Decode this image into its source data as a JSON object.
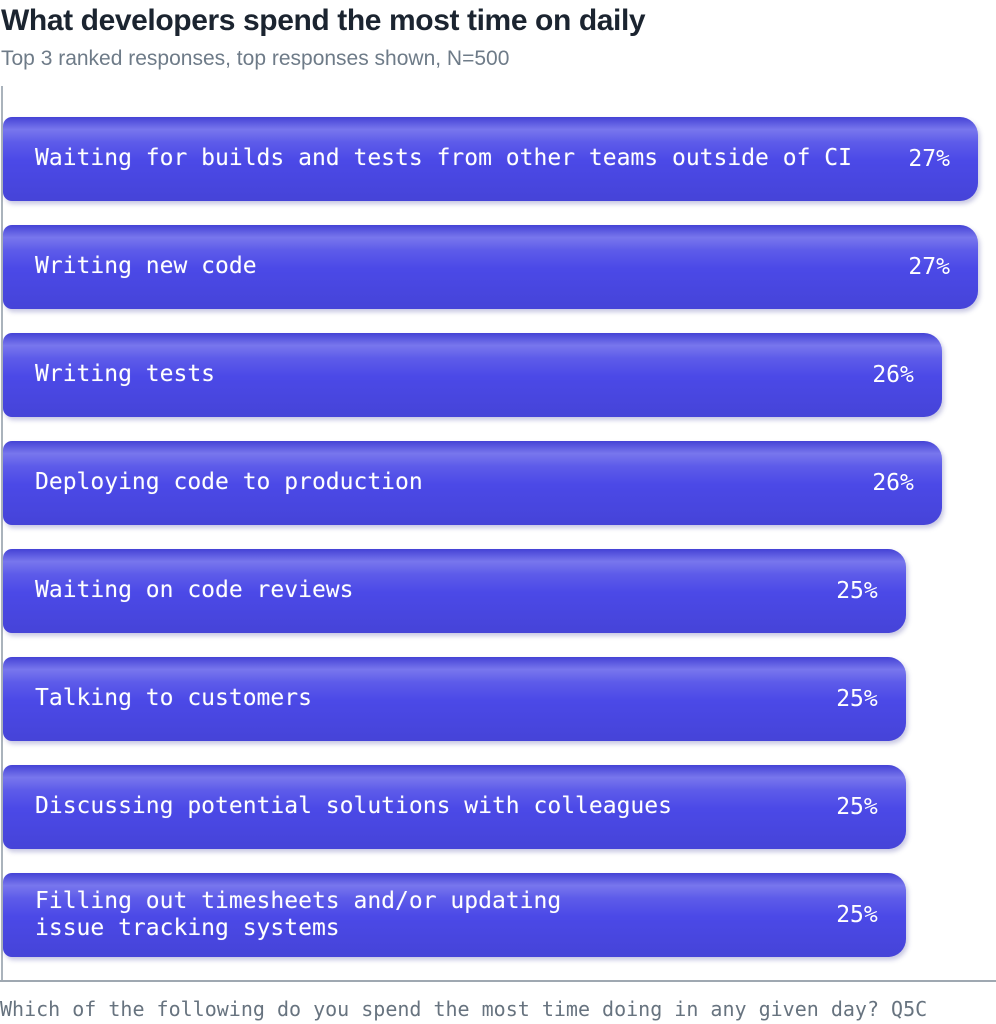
{
  "header": {
    "title": "What developers spend the most time on daily",
    "subtitle": "Top 3 ranked responses, top responses shown, N=500"
  },
  "chart_data": {
    "type": "bar",
    "orientation": "horizontal",
    "title": "What developers spend the most time on daily",
    "subtitle": "Top 3 ranked responses, top responses shown, N=500",
    "categories": [
      "Waiting for builds and tests from other teams outside of CI",
      "Writing new code",
      "Writing tests",
      "Deploying code to production",
      "Waiting on code reviews",
      "Talking to customers",
      "Discussing potential solutions with colleagues",
      "Filling out timesheets and/or updating\nissue tracking systems"
    ],
    "values": [
      27,
      27,
      26,
      26,
      25,
      25,
      25,
      25
    ],
    "value_labels": [
      "27%",
      "27%",
      "26%",
      "26%",
      "25%",
      "25%",
      "25%",
      "25%"
    ],
    "xlabel": "",
    "ylabel": "",
    "xlim": [
      0,
      27.5
    ],
    "grid": false,
    "legend": false,
    "value_suffix": "%"
  },
  "footer": {
    "question": "Which of the following do you spend the most time doing in any given day? Q5C"
  },
  "colors": {
    "bar": "#4b49e7",
    "bar_text": "#ffffff",
    "title": "#1b2430",
    "subtitle": "#6e7b88",
    "axis": "#aab3bc",
    "footnote": "#67737f",
    "background": "#ffffff"
  }
}
